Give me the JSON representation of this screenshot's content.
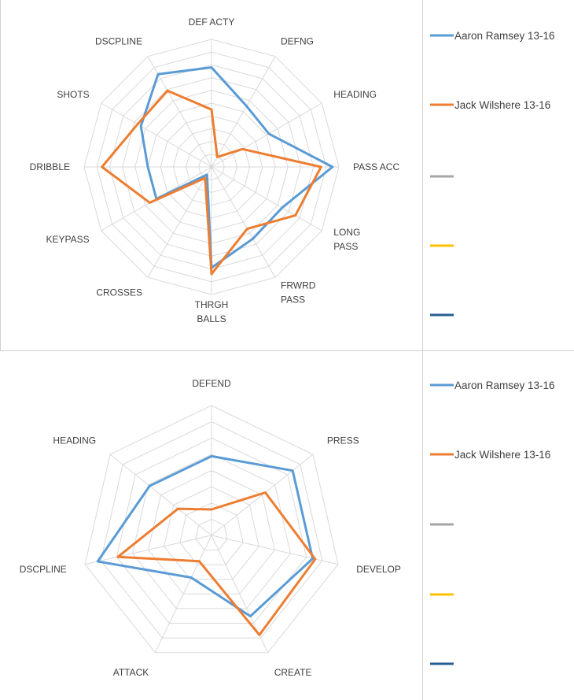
{
  "chart_data": [
    {
      "type": "radar",
      "title": "",
      "axes": [
        [
          "DEF ACTY"
        ],
        [
          "DEFNG"
        ],
        [
          "HEADING"
        ],
        [
          "PASS ACC"
        ],
        [
          "LONG",
          "PASS"
        ],
        [
          "FRWRD",
          "PASS"
        ],
        [
          "THRGH",
          "BALLS"
        ],
        [
          "CROSSES"
        ],
        [
          "KEYPASS"
        ],
        [
          "DRIBBLE"
        ],
        [
          "SHOTS"
        ],
        [
          "DSCPLINE"
        ]
      ],
      "rlim": [
        0,
        10
      ],
      "rings": 10,
      "series": [
        {
          "name": "Aaron Ramsey 13-16",
          "color": "#5b9bd5",
          "values": [
            7.8,
            5.5,
            5.2,
            9.5,
            6.4,
            6.5,
            7.9,
            0.7,
            5.0,
            5.0,
            6.4,
            8.4
          ]
        },
        {
          "name": "Jack Wilshere 13-16",
          "color": "#ed7d31",
          "values": [
            4.5,
            0.9,
            2.8,
            8.6,
            7.6,
            5.6,
            8.4,
            1.0,
            5.6,
            8.6,
            6.7,
            6.9
          ]
        }
      ],
      "legend_extra": [
        {
          "name": "",
          "color": "#a5a5a5"
        },
        {
          "name": "",
          "color": "#ffc000"
        },
        {
          "name": "",
          "color": "#255e91"
        }
      ]
    },
    {
      "type": "radar",
      "title": "",
      "axes": [
        [
          "DEFEND"
        ],
        [
          "PRESS"
        ],
        [
          "DEVELOP"
        ],
        [
          "CREATE"
        ],
        [
          "ATTACK"
        ],
        [
          "DSCPLINE"
        ],
        [
          "HEADING"
        ]
      ],
      "rlim": [
        0,
        10
      ],
      "rings": 8,
      "series": [
        {
          "name": "Aaron Ramsey 13-16",
          "color": "#5b9bd5",
          "values": [
            6.1,
            8.0,
            8.0,
            6.9,
            3.6,
            9.0,
            6.1
          ]
        },
        {
          "name": "Jack Wilshere 13-16",
          "color": "#ed7d31",
          "values": [
            2.0,
            5.3,
            8.2,
            8.5,
            2.2,
            7.4,
            3.3
          ]
        }
      ],
      "legend_extra": [
        {
          "name": "",
          "color": "#a5a5a5"
        },
        {
          "name": "",
          "color": "#ffc000"
        },
        {
          "name": "",
          "color": "#255e91"
        }
      ]
    }
  ]
}
